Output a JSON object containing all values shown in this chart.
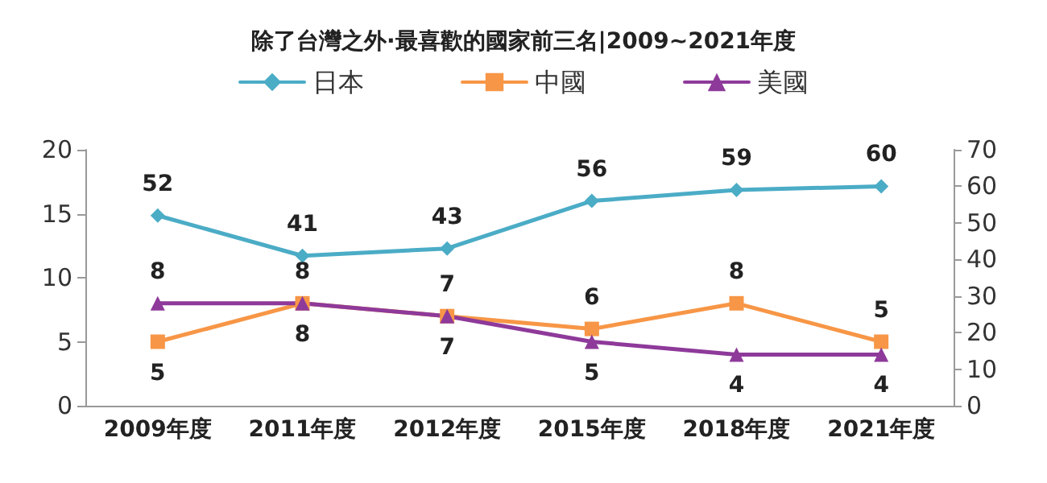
{
  "chart_data": {
    "type": "line",
    "title": "除了台灣之外·最喜歡的國家前三名|2009~2021年度",
    "categories": [
      "2009年度",
      "2011年度",
      "2012年度",
      "2015年度",
      "2018年度",
      "2021年度"
    ],
    "series": [
      {
        "name": "日本",
        "color": "#4bacc6",
        "marker": "diamond",
        "axis": "y2",
        "values": [
          52,
          41,
          43,
          56,
          59,
          60
        ]
      },
      {
        "name": "中國",
        "color": "#f79646",
        "marker": "square",
        "values": [
          5,
          8,
          7,
          6,
          8,
          5
        ]
      },
      {
        "name": "美國",
        "color": "#8e3a9a",
        "marker": "triangle",
        "values": [
          8,
          8,
          7,
          5,
          4,
          4
        ]
      }
    ],
    "ylim": [
      0,
      20
    ],
    "yticks": [
      0,
      5,
      10,
      15,
      20
    ],
    "y2lim": [
      0,
      70
    ],
    "y2ticks": [
      0,
      10,
      20,
      30,
      40,
      50,
      60,
      70
    ],
    "data_labels": true,
    "legend": "top",
    "grid": false
  }
}
